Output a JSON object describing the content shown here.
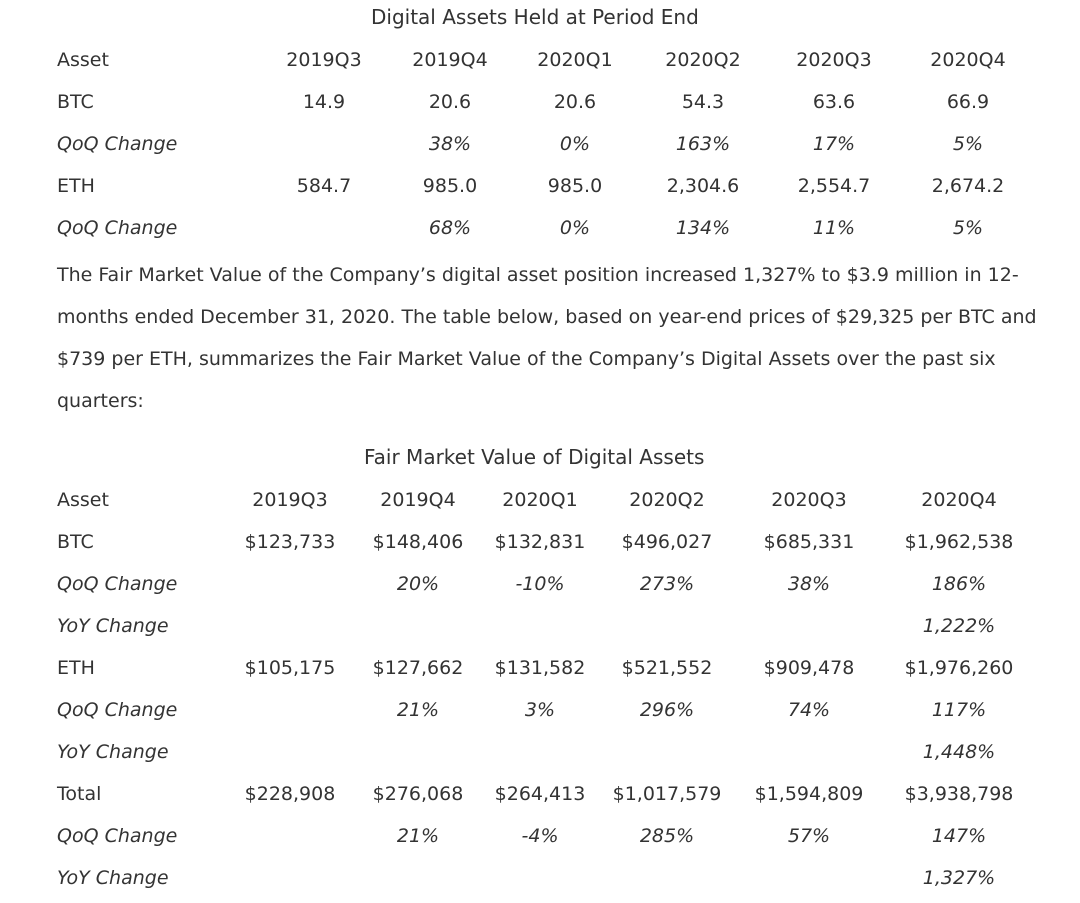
{
  "held": {
    "title": "Digital Assets Held at Period End",
    "header": [
      "Asset",
      "2019Q3",
      "2019Q4",
      "2020Q1",
      "2020Q2",
      "2020Q3",
      "2020Q4"
    ],
    "rows": [
      {
        "label": "BTC",
        "values": [
          "14.9",
          "20.6",
          "20.6",
          "54.3",
          "63.6",
          "66.9"
        ]
      },
      {
        "label": "QoQ Change",
        "values": [
          "",
          "38%",
          "0%",
          "163%",
          "17%",
          "5%"
        ]
      },
      {
        "label": "ETH",
        "values": [
          "584.7",
          "985.0",
          "985.0",
          "2,304.6",
          "2,554.7",
          "2,674.2"
        ]
      },
      {
        "label": "QoQ Change",
        "values": [
          "",
          "68%",
          "0%",
          "134%",
          "11%",
          "5%"
        ]
      }
    ]
  },
  "paragraph": "The Fair Market Value of the Company’s digital asset position increased 1,327% to $3.9 million in 12-months ended December 31, 2020. The table below, based on year-end prices of $29,325 per BTC and $739 per ETH, summarizes the Fair Market Value of the Company’s Digital Assets over the past six quarters:",
  "fmv": {
    "title": "Fair Market Value of Digital Assets",
    "header": [
      "Asset",
      "2019Q3",
      "2019Q4",
      "2020Q1",
      "2020Q2",
      "2020Q3",
      "2020Q4"
    ],
    "rows": [
      {
        "label": "BTC",
        "values": [
          "$123,733",
          "$148,406",
          "$132,831",
          "$496,027",
          "$685,331",
          "$1,962,538"
        ]
      },
      {
        "label": "QoQ Change",
        "values": [
          "",
          "20%",
          "-10%",
          "273%",
          "38%",
          "186%"
        ]
      },
      {
        "label": "YoY Change",
        "values": [
          "",
          "",
          "",
          "",
          "",
          "1,222%"
        ]
      },
      {
        "label": "ETH",
        "values": [
          "$105,175",
          "$127,662",
          "$131,582",
          "$521,552",
          "$909,478",
          "$1,976,260"
        ]
      },
      {
        "label": "QoQ Change",
        "values": [
          "",
          "21%",
          "3%",
          "296%",
          "74%",
          "117%"
        ]
      },
      {
        "label": "YoY Change",
        "values": [
          "",
          "",
          "",
          "",
          "",
          "1,448%"
        ]
      },
      {
        "label": "Total",
        "values": [
          "$228,908",
          "$276,068",
          "$264,413",
          "$1,017,579",
          "$1,594,809",
          "$3,938,798"
        ]
      },
      {
        "label": "QoQ Change",
        "values": [
          "",
          "21%",
          "-4%",
          "285%",
          "57%",
          "147%"
        ]
      },
      {
        "label": "YoY Change",
        "values": [
          "",
          "",
          "",
          "",
          "",
          "1,327%"
        ]
      }
    ]
  }
}
